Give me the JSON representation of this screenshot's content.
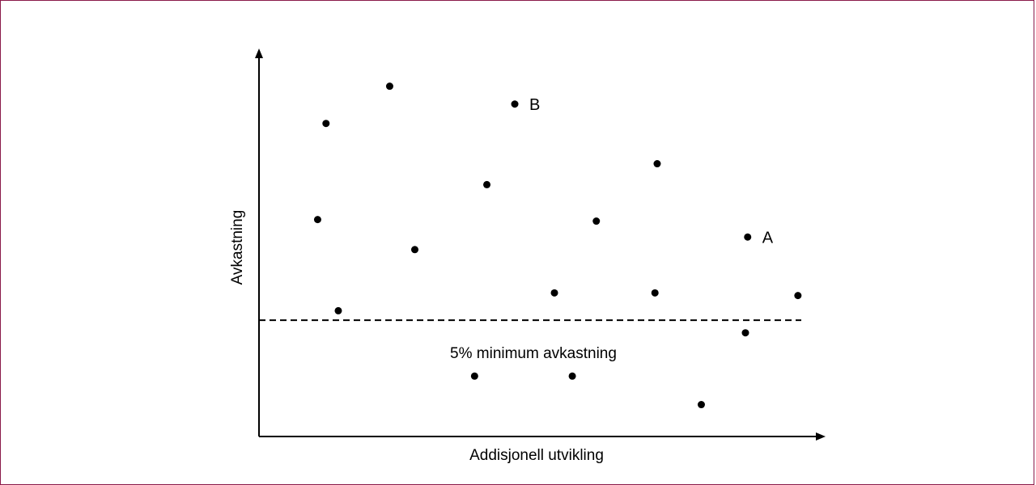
{
  "chart_data": {
    "type": "scatter",
    "title": "",
    "xlabel": "Addisjonell utvikling",
    "ylabel": "Avkastning",
    "grid": false,
    "legend": "none",
    "xlim": [
      0,
      100
    ],
    "ylim": [
      0,
      100
    ],
    "points": [
      {
        "x": 12.0,
        "y": 82.4,
        "label": ""
      },
      {
        "x": 23.4,
        "y": 92.2,
        "label": ""
      },
      {
        "x": 45.8,
        "y": 87.5,
        "label": "B"
      },
      {
        "x": 40.8,
        "y": 66.3,
        "label": ""
      },
      {
        "x": 71.3,
        "y": 71.8,
        "label": ""
      },
      {
        "x": 10.5,
        "y": 57.1,
        "label": ""
      },
      {
        "x": 27.9,
        "y": 49.2,
        "label": ""
      },
      {
        "x": 60.4,
        "y": 56.7,
        "label": ""
      },
      {
        "x": 87.5,
        "y": 52.5,
        "label": "A"
      },
      {
        "x": 14.2,
        "y": 33.1,
        "label": ""
      },
      {
        "x": 52.9,
        "y": 37.8,
        "label": ""
      },
      {
        "x": 70.9,
        "y": 37.8,
        "label": ""
      },
      {
        "x": 96.5,
        "y": 37.1,
        "label": ""
      },
      {
        "x": 87.1,
        "y": 27.3,
        "label": ""
      },
      {
        "x": 38.6,
        "y": 15.9,
        "label": ""
      },
      {
        "x": 56.1,
        "y": 15.9,
        "label": ""
      },
      {
        "x": 79.2,
        "y": 8.4,
        "label": ""
      }
    ],
    "threshold": {
      "y": 30.6,
      "label": "5% minimum avkastning",
      "style": "dashed"
    }
  }
}
